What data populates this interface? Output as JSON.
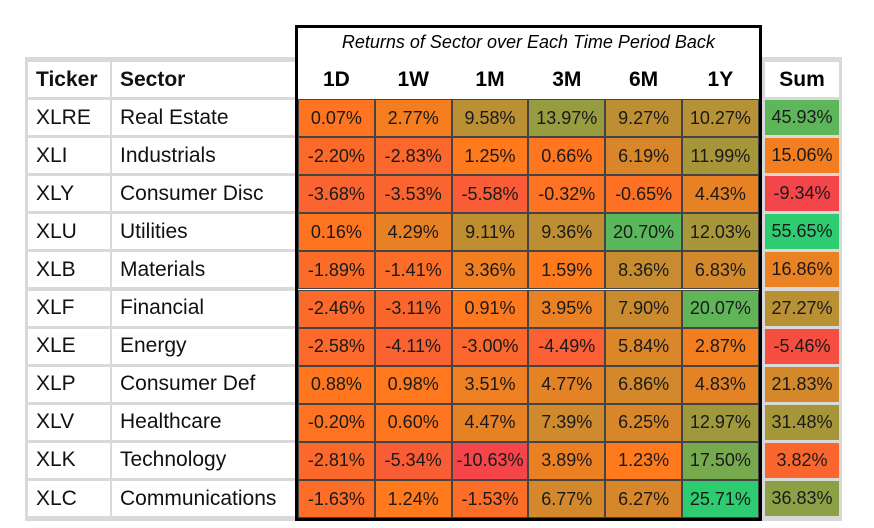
{
  "chart_data": {
    "type": "heatmap",
    "title": "Returns of Sector over Each Time Period Back",
    "label_headers": {
      "ticker": "Ticker",
      "sector": "Sector",
      "sum": "Sum"
    },
    "columns": [
      "1D",
      "1W",
      "1M",
      "3M",
      "6M",
      "1Y"
    ],
    "rows": [
      {
        "ticker": "XLRE",
        "sector": "Real Estate",
        "values": [
          0.07,
          2.77,
          9.58,
          13.97,
          9.27,
          10.27
        ],
        "sum": 45.93
      },
      {
        "ticker": "XLI",
        "sector": "Industrials",
        "values": [
          -2.2,
          -2.83,
          1.25,
          0.66,
          6.19,
          11.99
        ],
        "sum": 15.06
      },
      {
        "ticker": "XLY",
        "sector": "Consumer Disc",
        "values": [
          -3.68,
          -3.53,
          -5.58,
          -0.32,
          -0.65,
          4.43
        ],
        "sum": -9.34
      },
      {
        "ticker": "XLU",
        "sector": "Utilities",
        "values": [
          0.16,
          4.29,
          9.11,
          9.36,
          20.7,
          12.03
        ],
        "sum": 55.65
      },
      {
        "ticker": "XLB",
        "sector": "Materials",
        "values": [
          -1.89,
          -1.41,
          3.36,
          1.59,
          8.36,
          6.83
        ],
        "sum": 16.86
      },
      {
        "ticker": "XLF",
        "sector": "Financial",
        "values": [
          -2.46,
          -3.11,
          0.91,
          3.95,
          7.9,
          20.07
        ],
        "sum": 27.27
      },
      {
        "ticker": "XLE",
        "sector": "Energy",
        "values": [
          -2.58,
          -4.11,
          -3.0,
          -4.49,
          5.84,
          2.87
        ],
        "sum": -5.46
      },
      {
        "ticker": "XLP",
        "sector": "Consumer Def",
        "values": [
          0.88,
          0.98,
          3.51,
          4.77,
          6.86,
          4.83
        ],
        "sum": 21.83
      },
      {
        "ticker": "XLV",
        "sector": "Healthcare",
        "values": [
          -0.2,
          0.6,
          4.47,
          7.39,
          6.25,
          12.97
        ],
        "sum": 31.48
      },
      {
        "ticker": "XLK",
        "sector": "Technology",
        "values": [
          -2.81,
          -5.34,
          -10.63,
          3.89,
          1.23,
          17.5
        ],
        "sum": 3.82
      },
      {
        "ticker": "XLC",
        "sector": "Communications",
        "values": [
          -1.63,
          1.24,
          -1.53,
          6.77,
          6.27,
          25.71
        ],
        "sum": 36.83
      }
    ],
    "colors": {
      "red": "#f4464a",
      "orange": "#ff7a1c",
      "olive": "#9a9a3e",
      "green": "#2ecc71",
      "grid": "#d9d9d9",
      "cell_border": "#444444",
      "frame": "#000000"
    },
    "value_format": "percent_2dp"
  }
}
